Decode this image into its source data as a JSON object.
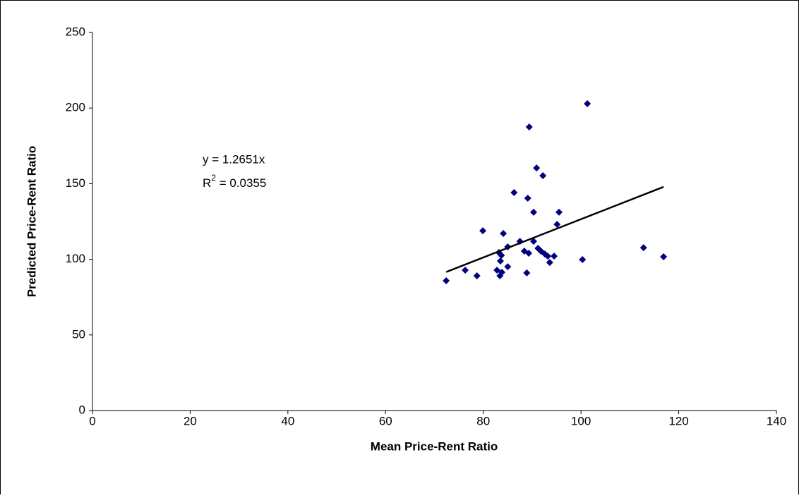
{
  "chart_data": {
    "type": "scatter",
    "xlabel": "Mean Price-Rent Ratio",
    "ylabel": "Predicted Price-Rent Ratio",
    "annotations": [
      "y = 1.2651x",
      [
        "R",
        "2",
        " = 0.0355"
      ]
    ],
    "xlim": [
      0,
      140
    ],
    "xticks": [
      0,
      20,
      40,
      60,
      80,
      100,
      120,
      140
    ],
    "ylim": [
      0,
      250
    ],
    "yticks": [
      0,
      50,
      100,
      150,
      200,
      250
    ],
    "series": [
      {
        "color": "#000080",
        "x": [
          101.3,
          89.4,
          90.9,
          92.2,
          86.3,
          89.1,
          90.3,
          95.5,
          95.1,
          79.9,
          84.1,
          87.5,
          90.3,
          85.0,
          112.8,
          91.2,
          91.8,
          88.4,
          83.2,
          83.7,
          89.3,
          92.6,
          93.2,
          94.5,
          116.9,
          100.3,
          83.5,
          93.6,
          85.0,
          76.3,
          82.8,
          83.8,
          88.9,
          78.7,
          83.4,
          72.4
        ],
        "values": [
          202.9,
          187.5,
          160.4,
          155.3,
          144.1,
          140.4,
          131.1,
          131.1,
          123.1,
          118.9,
          117.1,
          111.9,
          111.9,
          108.2,
          107.7,
          107.3,
          105.4,
          105.4,
          104.5,
          102.6,
          104.0,
          103.5,
          102.1,
          102.1,
          101.7,
          99.8,
          98.9,
          97.9,
          95.1,
          92.8,
          92.8,
          91.4,
          91.0,
          89.1,
          89.1,
          85.8
        ]
      }
    ],
    "trendline": {
      "color": "#000000",
      "x": [
        72.4,
        116.9
      ],
      "values": [
        91.6,
        147.9
      ]
    }
  }
}
